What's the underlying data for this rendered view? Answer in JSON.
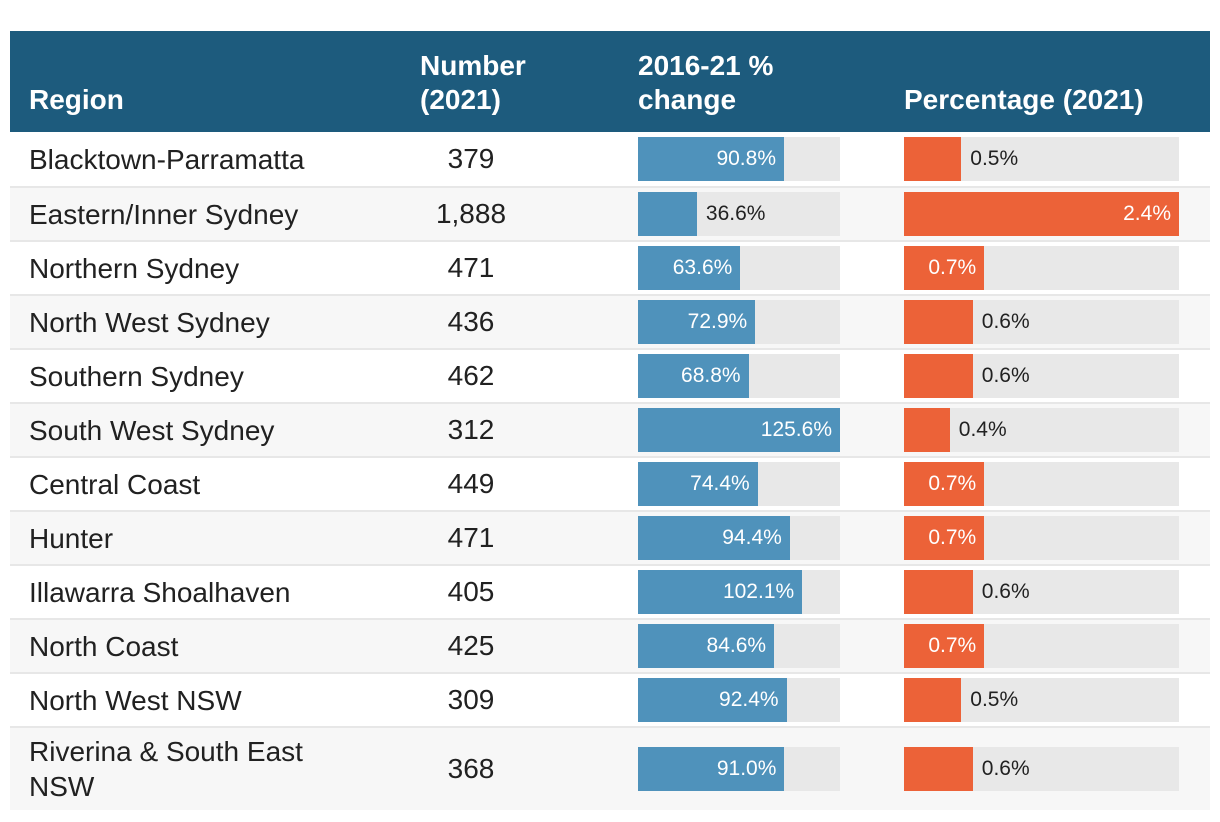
{
  "header": {
    "columns": [
      {
        "label": "Region"
      },
      {
        "label": "Number (2021)"
      },
      {
        "label": "2016-21 % change"
      },
      {
        "label": "Percentage (2021)"
      }
    ]
  },
  "chart_data": {
    "type": "table",
    "title": "",
    "columns": [
      "Region",
      "Number (2021)",
      "2016-21 % change",
      "Percentage (2021)"
    ],
    "bar_columns": {
      "pct_change": {
        "max": 125.6,
        "unit": "%",
        "color": "#4f92bb",
        "track_color": "#e8e8e8"
      },
      "percentage": {
        "max": 2.4,
        "unit": "%",
        "color": "#ec6238",
        "track_color": "#e8e8e8"
      }
    },
    "rows": [
      {
        "region": "Blacktown-Parramatta",
        "number": "379",
        "pct_change": 90.8,
        "pct_change_label": "90.8%",
        "percentage": 0.5,
        "percentage_label": "0.5%"
      },
      {
        "region": "Eastern/Inner Sydney",
        "number": "1,888",
        "pct_change": 36.6,
        "pct_change_label": "36.6%",
        "percentage": 2.4,
        "percentage_label": "2.4%"
      },
      {
        "region": "Northern Sydney",
        "number": "471",
        "pct_change": 63.6,
        "pct_change_label": "63.6%",
        "percentage": 0.7,
        "percentage_label": "0.7%"
      },
      {
        "region": "North West Sydney",
        "number": "436",
        "pct_change": 72.9,
        "pct_change_label": "72.9%",
        "percentage": 0.6,
        "percentage_label": "0.6%"
      },
      {
        "region": "Southern Sydney",
        "number": "462",
        "pct_change": 68.8,
        "pct_change_label": "68.8%",
        "percentage": 0.6,
        "percentage_label": "0.6%"
      },
      {
        "region": "South West Sydney",
        "number": "312",
        "pct_change": 125.6,
        "pct_change_label": "125.6%",
        "percentage": 0.4,
        "percentage_label": "0.4%"
      },
      {
        "region": "Central Coast",
        "number": "449",
        "pct_change": 74.4,
        "pct_change_label": "74.4%",
        "percentage": 0.7,
        "percentage_label": "0.7%"
      },
      {
        "region": "Hunter",
        "number": "471",
        "pct_change": 94.4,
        "pct_change_label": "94.4%",
        "percentage": 0.7,
        "percentage_label": "0.7%"
      },
      {
        "region": "Illawarra Shoalhaven",
        "number": "405",
        "pct_change": 102.1,
        "pct_change_label": "102.1%",
        "percentage": 0.6,
        "percentage_label": "0.6%"
      },
      {
        "region": "North Coast",
        "number": "425",
        "pct_change": 84.6,
        "pct_change_label": "84.6%",
        "percentage": 0.7,
        "percentage_label": "0.7%"
      },
      {
        "region": "North West NSW",
        "number": "309",
        "pct_change": 92.4,
        "pct_change_label": "92.4%",
        "percentage": 0.5,
        "percentage_label": "0.5%"
      },
      {
        "region": "Riverina & South East NSW",
        "number": "368",
        "pct_change": 91.0,
        "pct_change_label": "91.0%",
        "percentage": 0.6,
        "percentage_label": "0.6%"
      }
    ]
  },
  "colors": {
    "header_bg": "#1d5b7d",
    "change_bar": "#4f92bb",
    "percentage_bar": "#ec6238",
    "bar_track": "#e8e8e8",
    "row_stripe": "#f7f7f7",
    "row_border": "#e7e7e7",
    "text_dark": "#212121",
    "header_text": "#ffffff"
  }
}
